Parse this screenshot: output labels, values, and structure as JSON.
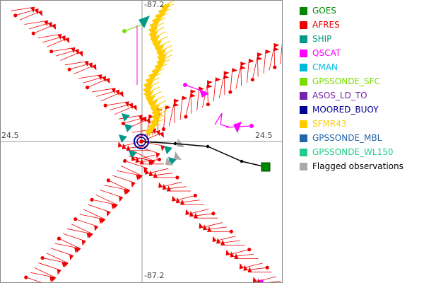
{
  "chart_data": {
    "type": "scatter",
    "description_labels": {
      "left": "24.5",
      "right": "24.5",
      "top": "-87.2",
      "bottom": "-87.2"
    },
    "center": {
      "lon": -87.2,
      "lat": 24.5
    },
    "series": [
      {
        "name": "GOES",
        "color": "#008800",
        "text_color": "#008800"
      },
      {
        "name": "AFRES",
        "color": "#ee0000",
        "text_color": "#ee0000"
      },
      {
        "name": "SHIP",
        "color": "#009988",
        "text_color": "#009988"
      },
      {
        "name": "QSCAT",
        "color": "#ff00ff",
        "text_color": "#ff00ff"
      },
      {
        "name": "CMAN",
        "color": "#00bbdd",
        "text_color": "#00bbdd"
      },
      {
        "name": "GPSSONDE_SFC",
        "color": "#77dd00",
        "text_color": "#77dd00"
      },
      {
        "name": "ASOS_LD_TO",
        "color": "#7722aa",
        "text_color": "#7722aa"
      },
      {
        "name": "MOORED_BUOY",
        "color": "#000099",
        "text_color": "#000099"
      },
      {
        "name": "SFMR43",
        "color": "#ffcc00",
        "text_color": "#ffcc00"
      },
      {
        "name": "GPSSONDE_MBL",
        "color": "#2266aa",
        "text_color": "#2266aa"
      },
      {
        "name": "GPSSONDE_WL150",
        "color": "#22cc88",
        "text_color": "#22cc88"
      },
      {
        "name": "Flagged observations",
        "color": "#aaaaaa",
        "text_color": "#000000"
      }
    ]
  }
}
